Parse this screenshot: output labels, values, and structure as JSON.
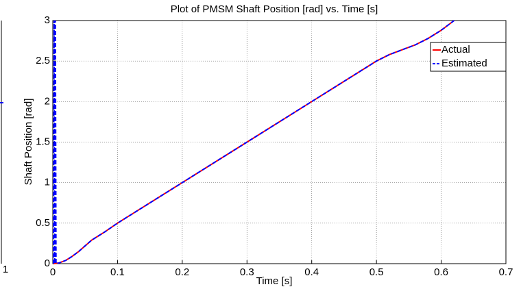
{
  "chart_data": [
    {
      "type": "line",
      "title": "Plot of PMSM Shaft Position [rad] vs. Time [s]",
      "xlabel": "Time [s]",
      "ylabel": "Shaft Position [rad]",
      "xlim": [
        0,
        0.7
      ],
      "ylim": [
        0,
        3
      ],
      "xticks": [
        0,
        0.1,
        0.2,
        0.3,
        0.4,
        0.5,
        0.6,
        0.7
      ],
      "yticks": [
        0,
        0.5,
        1,
        1.5,
        2,
        2.5,
        3
      ],
      "grid": true,
      "legend": "northeast",
      "series": [
        {
          "name": "Actual",
          "color": "#ff0000",
          "x": [
            0,
            0.01,
            0.02,
            0.03,
            0.04,
            0.05,
            0.06,
            0.07,
            0.08,
            0.1,
            0.2,
            0.3,
            0.4,
            0.48,
            0.5,
            0.52,
            0.54,
            0.56,
            0.58,
            0.6,
            0.62
          ],
          "values": [
            0,
            0.01,
            0.04,
            0.09,
            0.15,
            0.22,
            0.29,
            0.34,
            0.39,
            0.5,
            1.0,
            1.5,
            2.0,
            2.4,
            2.5,
            2.58,
            2.64,
            2.7,
            2.78,
            2.88,
            3.0
          ]
        },
        {
          "name": "Estimated",
          "color": "#0000ff",
          "x": [
            0.001,
            0.002,
            0.003,
            0.004,
            0.005,
            0.01,
            0.02,
            0.03,
            0.04,
            0.05,
            0.06,
            0.07,
            0.08,
            0.1,
            0.2,
            0.3,
            0.4,
            0.48,
            0.5,
            0.52,
            0.54,
            0.56,
            0.58,
            0.6,
            0.62
          ],
          "values": [
            0,
            3,
            0,
            3,
            0,
            0.01,
            0.04,
            0.09,
            0.15,
            0.22,
            0.29,
            0.34,
            0.39,
            0.5,
            1.0,
            1.5,
            2.0,
            2.4,
            2.5,
            2.58,
            2.64,
            2.7,
            2.78,
            2.88,
            3.0
          ]
        }
      ]
    },
    {
      "type": "fragment",
      "xticks": [
        1
      ]
    }
  ]
}
